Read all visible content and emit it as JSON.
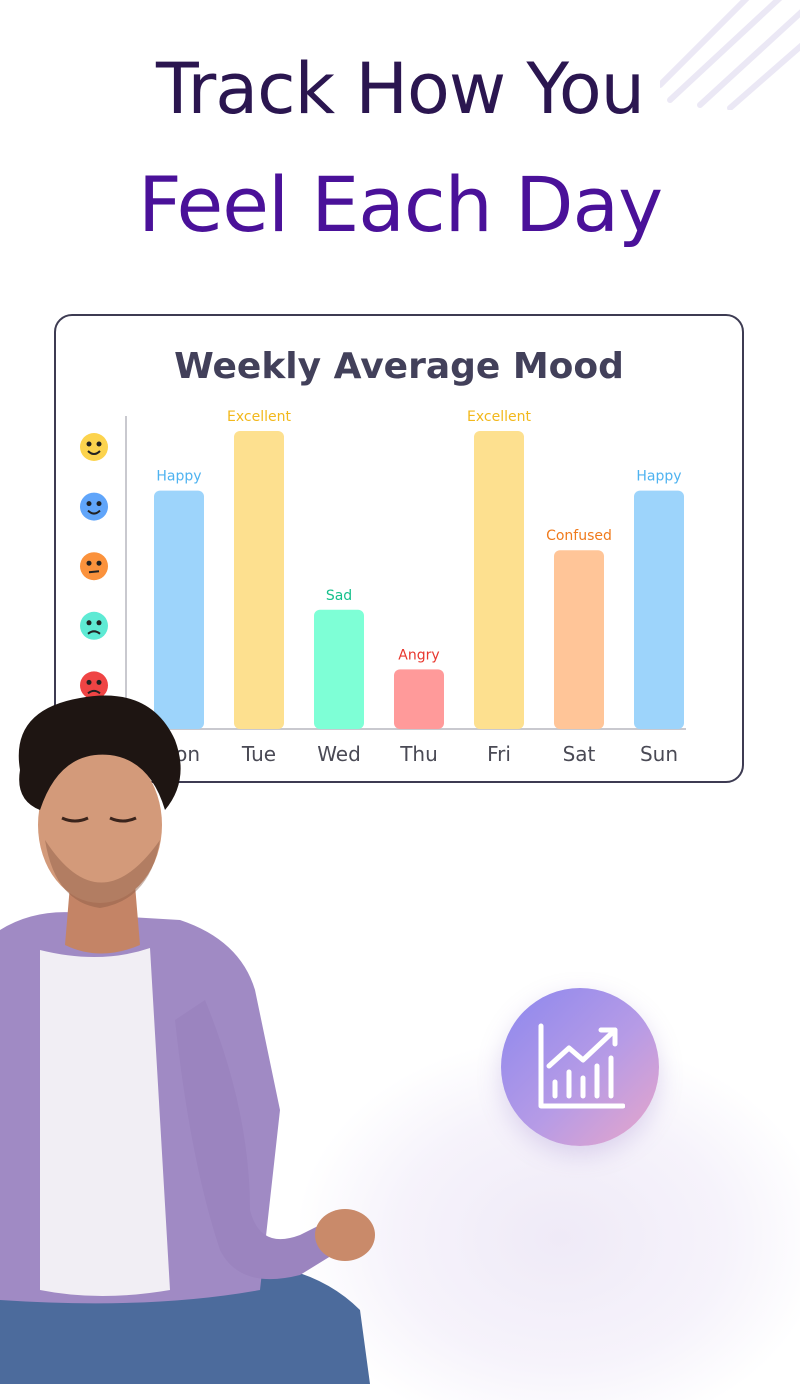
{
  "headline": {
    "line1": "Track How You",
    "line2": "Feel Each Day"
  },
  "chart_data": {
    "type": "bar",
    "title": "Weekly Average Mood",
    "categories": [
      "Mon",
      "Tue",
      "Wed",
      "Thu",
      "Fri",
      "Sat",
      "Sun"
    ],
    "values": [
      4,
      5,
      2,
      1,
      5,
      3,
      4
    ],
    "labels": [
      "Happy",
      "Excellent",
      "Sad",
      "Angry",
      "Excellent",
      "Confused",
      "Happy"
    ],
    "ylim": [
      0,
      5
    ],
    "y_axis_moods": [
      "Excellent",
      "Happy",
      "Confused",
      "Sad",
      "Angry"
    ],
    "bar_colors": [
      "#9dd4fb",
      "#fde08f",
      "#7effd6",
      "#ff9a9a",
      "#fde08f",
      "#ffc598",
      "#9dd4fb"
    ],
    "label_colors": [
      "#4fb3f0",
      "#f2b81c",
      "#16c08c",
      "#e8372e",
      "#f2b81c",
      "#f07a1c",
      "#4fb3f0"
    ],
    "grid": false,
    "legend": "none"
  },
  "icons": {
    "badge": "growth-chart-icon"
  },
  "colors": {
    "headline_dark": "#2b1650",
    "headline_purple": "#4a1199"
  }
}
